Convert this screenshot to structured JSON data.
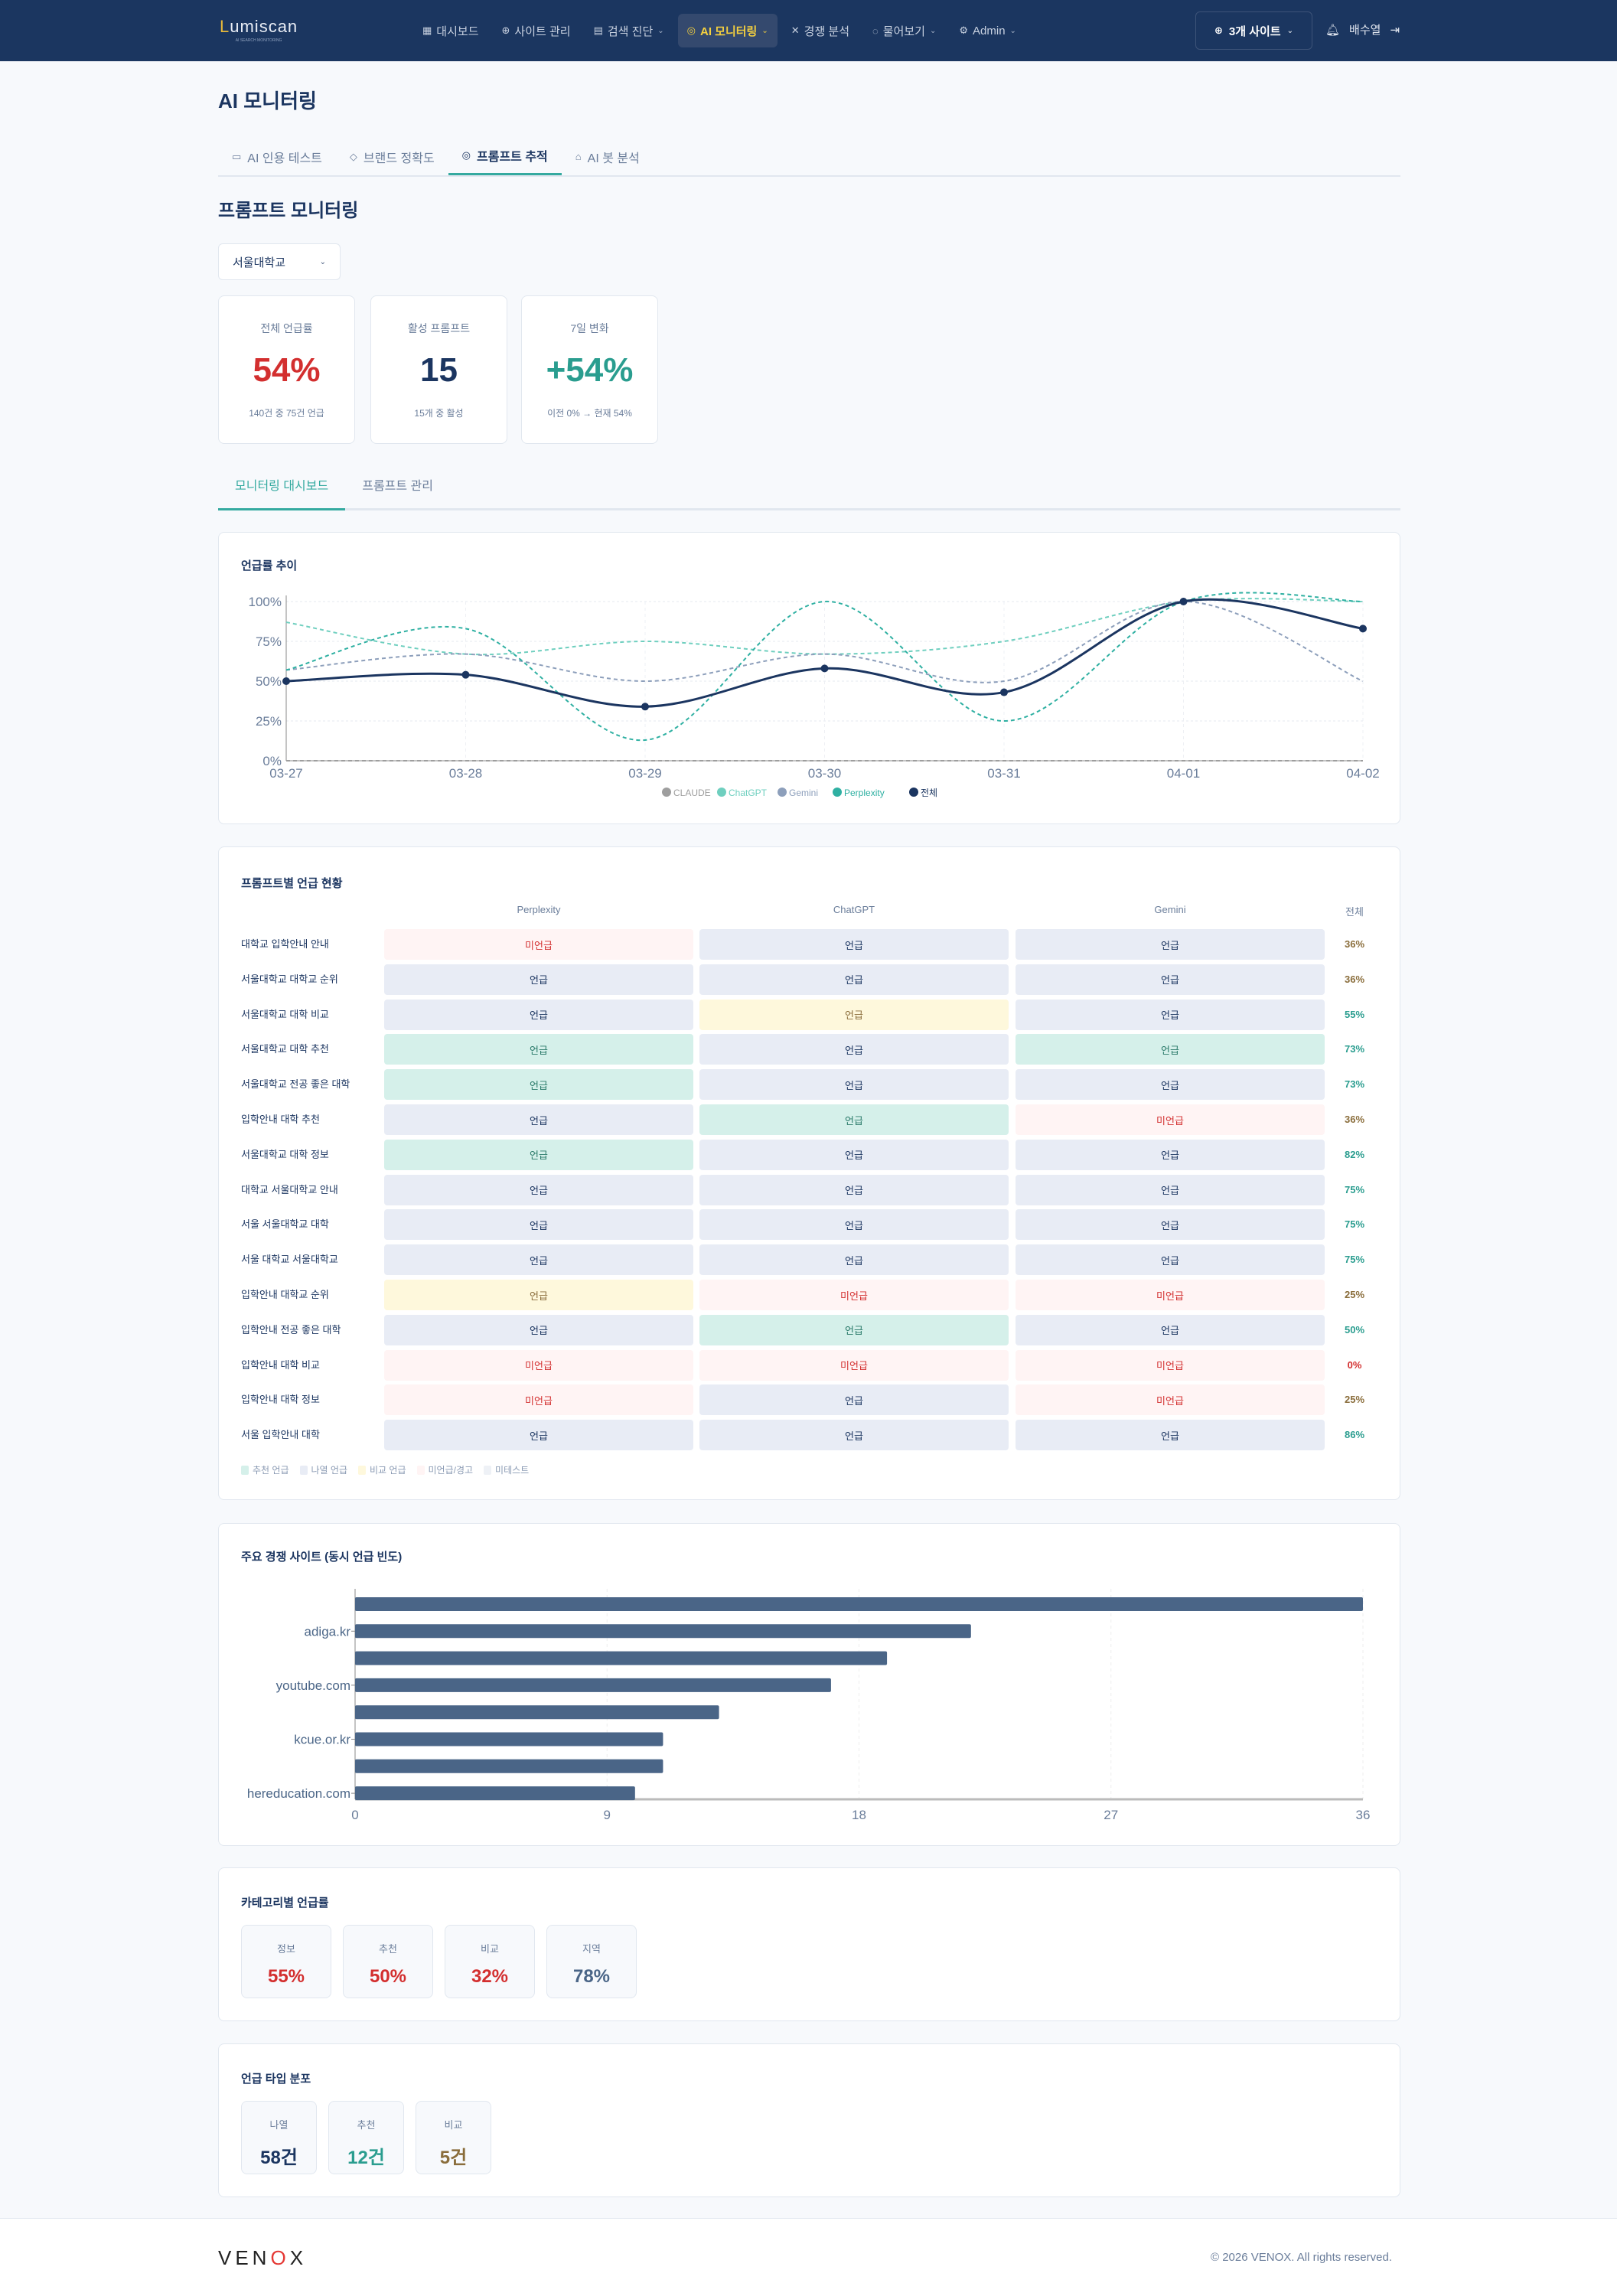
{
  "header": {
    "logo": "Lumiscan",
    "logo_sub": "AI SEARCH MONITORING",
    "nav": [
      {
        "label": "대시보드",
        "icon": "grid-icon"
      },
      {
        "label": "사이트 관리",
        "icon": "globe-icon"
      },
      {
        "label": "검색 진단",
        "icon": "document-icon",
        "dropdown": true
      },
      {
        "label": "AI 모니터링",
        "icon": "brain-icon",
        "dropdown": true,
        "active": true
      },
      {
        "label": "경쟁 분석",
        "icon": "swords-icon"
      },
      {
        "label": "물어보기",
        "icon": "chat-icon",
        "dropdown": true
      },
      {
        "label": "Admin",
        "icon": "gear-icon",
        "dropdown": true
      }
    ],
    "sites_button": "3개 사이트",
    "user": "배수열"
  },
  "page_title": "AI 모니터링",
  "tabs": [
    {
      "label": "AI 인용 테스트",
      "icon": "message-icon"
    },
    {
      "label": "브랜드 정확도",
      "icon": "shield-check-icon"
    },
    {
      "label": "프롬프트 추적",
      "icon": "brain-icon",
      "active": true
    },
    {
      "label": "AI 봇 분석",
      "icon": "bot-icon"
    }
  ],
  "section_title": "프롬프트 모니터링",
  "selector": {
    "value": "서울대학교"
  },
  "stats": [
    {
      "label": "전체 언급률",
      "value": "54%",
      "sub": "140건 중 75건 언급",
      "color": "#d32f2f"
    },
    {
      "label": "활성 프롬프트",
      "value": "15",
      "sub": "15개 중 활성",
      "color": "#1b3560"
    },
    {
      "label": "7일 변화",
      "value": "+54%",
      "sub": "이전 0% → 현재 54%",
      "color": "#2a9d8f"
    }
  ],
  "subtabs": [
    {
      "label": "모니터링 대시보드",
      "active": true
    },
    {
      "label": "프롬프트 관리"
    }
  ],
  "chart_data": [
    {
      "type": "line",
      "title": "언급률 추이",
      "x": [
        "03-27",
        "03-28",
        "03-29",
        "03-30",
        "03-31",
        "04-01",
        "04-02"
      ],
      "yticks": [
        "0%",
        "25%",
        "50%",
        "75%",
        "100%"
      ],
      "ylim": [
        0,
        100
      ],
      "legend_position": "bottom",
      "grid": true,
      "series": [
        {
          "name": "CLAUDE",
          "color": "#9e9e9e",
          "dashed": true,
          "values": [
            0,
            0,
            0,
            0,
            0,
            0,
            0
          ]
        },
        {
          "name": "ChatGPT",
          "color": "#6fcfbf",
          "dashed": true,
          "values": [
            87,
            67,
            75,
            67,
            75,
            100,
            100
          ]
        },
        {
          "name": "Gemini",
          "color": "#8d9fbb",
          "dashed": true,
          "values": [
            57,
            67,
            50,
            67,
            50,
            100,
            50
          ]
        },
        {
          "name": "Perplexity",
          "color": "#2fb0a2",
          "dashed": true,
          "values": [
            57,
            83,
            13,
            100,
            25,
            100,
            100
          ]
        },
        {
          "name": "전체",
          "color": "#1b3560",
          "dashed": false,
          "values": [
            50,
            54,
            34,
            58,
            43,
            100,
            83
          ]
        }
      ]
    },
    {
      "type": "bar",
      "orientation": "horizontal",
      "title": "주요 경쟁 사이트 (동시 언급 빈도)",
      "categories": [
        "",
        "adiga.kr",
        "",
        "youtube.com",
        "",
        "kcue.or.kr",
        "",
        "hereducation.com"
      ],
      "values": [
        36,
        22,
        19,
        17,
        13,
        11,
        11,
        10
      ],
      "xticks": [
        "0",
        "9",
        "18",
        "27",
        "36"
      ],
      "xlim": [
        0,
        36
      ],
      "color": "#4a6587"
    }
  ],
  "prompt_table": {
    "title": "프롬프트별 언급 현황",
    "columns": [
      "Perplexity",
      "ChatGPT",
      "Gemini",
      "전체"
    ],
    "rows": [
      {
        "label": "대학교 입학안내 안내",
        "cells": [
          [
            "미언급",
            "miss"
          ],
          [
            "언급",
            "list"
          ],
          [
            "언급",
            "list"
          ]
        ],
        "total": "36%",
        "tone": "brown"
      },
      {
        "label": "서울대학교 대학교 순위",
        "cells": [
          [
            "언급",
            "list"
          ],
          [
            "언급",
            "list"
          ],
          [
            "언급",
            "list"
          ]
        ],
        "total": "36%",
        "tone": "brown"
      },
      {
        "label": "서울대학교 대학 비교",
        "cells": [
          [
            "언급",
            "list"
          ],
          [
            "언급",
            "cmp"
          ],
          [
            "언급",
            "list"
          ]
        ],
        "total": "55%",
        "tone": "teal"
      },
      {
        "label": "서울대학교 대학 추천",
        "cells": [
          [
            "언급",
            "rec"
          ],
          [
            "언급",
            "list"
          ],
          [
            "언급",
            "rec"
          ]
        ],
        "total": "73%",
        "tone": "teal"
      },
      {
        "label": "서울대학교 전공 좋은 대학",
        "cells": [
          [
            "언급",
            "rec"
          ],
          [
            "언급",
            "list"
          ],
          [
            "언급",
            "list"
          ]
        ],
        "total": "73%",
        "tone": "teal"
      },
      {
        "label": "입학안내 대학 추천",
        "cells": [
          [
            "언급",
            "list"
          ],
          [
            "언급",
            "rec"
          ],
          [
            "미언급",
            "miss"
          ]
        ],
        "total": "36%",
        "tone": "brown"
      },
      {
        "label": "서울대학교 대학 정보",
        "cells": [
          [
            "언급",
            "rec"
          ],
          [
            "언급",
            "list"
          ],
          [
            "언급",
            "list"
          ]
        ],
        "total": "82%",
        "tone": "teal"
      },
      {
        "label": "대학교 서울대학교 안내",
        "cells": [
          [
            "언급",
            "list"
          ],
          [
            "언급",
            "list"
          ],
          [
            "언급",
            "list"
          ]
        ],
        "total": "75%",
        "tone": "teal"
      },
      {
        "label": "서울 서울대학교 대학",
        "cells": [
          [
            "언급",
            "list"
          ],
          [
            "언급",
            "list"
          ],
          [
            "언급",
            "list"
          ]
        ],
        "total": "75%",
        "tone": "teal"
      },
      {
        "label": "서울 대학교 서울대학교",
        "cells": [
          [
            "언급",
            "list"
          ],
          [
            "언급",
            "list"
          ],
          [
            "언급",
            "list"
          ]
        ],
        "total": "75%",
        "tone": "teal"
      },
      {
        "label": "입학안내 대학교 순위",
        "cells": [
          [
            "언급",
            "cmp"
          ],
          [
            "미언급",
            "miss"
          ],
          [
            "미언급",
            "miss"
          ]
        ],
        "total": "25%",
        "tone": "brown"
      },
      {
        "label": "입학안내 전공 좋은 대학",
        "cells": [
          [
            "언급",
            "list"
          ],
          [
            "언급",
            "rec"
          ],
          [
            "언급",
            "list"
          ]
        ],
        "total": "50%",
        "tone": "teal"
      },
      {
        "label": "입학안내 대학 비교",
        "cells": [
          [
            "미언급",
            "miss"
          ],
          [
            "미언급",
            "miss"
          ],
          [
            "미언급",
            "miss"
          ]
        ],
        "total": "0%",
        "tone": "red"
      },
      {
        "label": "입학안내 대학 정보",
        "cells": [
          [
            "미언급",
            "miss"
          ],
          [
            "언급",
            "list"
          ],
          [
            "미언급",
            "miss"
          ]
        ],
        "total": "25%",
        "tone": "brown"
      },
      {
        "label": "서울 입학안내 대학",
        "cells": [
          [
            "언급",
            "list"
          ],
          [
            "언급",
            "list"
          ],
          [
            "언급",
            "list"
          ]
        ],
        "total": "86%",
        "tone": "teal"
      }
    ],
    "legend": [
      {
        "label": "추천 언급",
        "type": "rec"
      },
      {
        "label": "나열 언급",
        "type": "list"
      },
      {
        "label": "비교 언급",
        "type": "cmp"
      },
      {
        "label": "미언급/경고",
        "type": "miss"
      },
      {
        "label": "미테스트",
        "type": "untested"
      }
    ]
  },
  "cell_styles": {
    "rec": {
      "bg": "#d5f0ea",
      "fg": "#2a7a6a"
    },
    "list": {
      "bg": "#e8ecf5",
      "fg": "#1b3560"
    },
    "cmp": {
      "bg": "#fef8dc",
      "fg": "#8a6d3b"
    },
    "miss": {
      "bg": "#fff4f4",
      "fg": "#d32f2f"
    },
    "untested": {
      "bg": "#eef1f6",
      "fg": "#8a9ab3"
    }
  },
  "tone_colors": {
    "teal": "#2a9d8f",
    "brown": "#8a6d3b",
    "red": "#d32f2f"
  },
  "category": {
    "title": "카테고리별 언급률",
    "items": [
      {
        "label": "정보",
        "value": "55%",
        "color": "#d32f2f"
      },
      {
        "label": "추천",
        "value": "50%",
        "color": "#d32f2f"
      },
      {
        "label": "비교",
        "value": "32%",
        "color": "#d32f2f"
      },
      {
        "label": "지역",
        "value": "78%",
        "color": "#4a6587"
      }
    ]
  },
  "mention_types": {
    "title": "언급 타입 분포",
    "items": [
      {
        "label": "나열",
        "value": "58건",
        "color": "#1b3560"
      },
      {
        "label": "추천",
        "value": "12건",
        "color": "#2a9d8f"
      },
      {
        "label": "비교",
        "value": "5건",
        "color": "#8a6d3b"
      }
    ]
  },
  "footer": {
    "brand": "VENOX",
    "copyright": "© 2026 VENOX. All rights reserved."
  }
}
